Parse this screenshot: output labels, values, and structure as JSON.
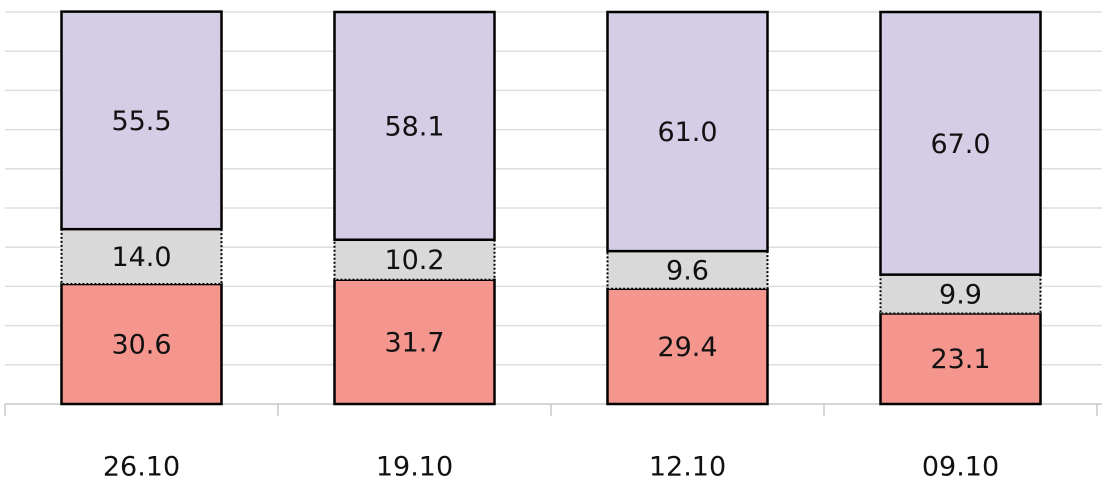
{
  "chart_data": {
    "type": "stacked_bar",
    "categories": [
      "26.10",
      "19.10",
      "12.10",
      "09.10"
    ],
    "series": [
      {
        "color": "#f4968e",
        "line_style": "solid",
        "values": [
          30.6,
          31.7,
          29.4,
          23.1
        ]
      },
      {
        "color": "#d9d9d9",
        "line_style": "dotted",
        "values": [
          14.0,
          10.2,
          9.6,
          9.9
        ]
      },
      {
        "color": "#d5cce6",
        "line_style": "solid",
        "values": [
          55.5,
          58.1,
          61.0,
          67.0
        ]
      }
    ],
    "value_labels": [
      [
        "30.6",
        "31.7",
        "29.4",
        "23.1"
      ],
      [
        "14.0",
        "10.2",
        "9.6",
        "9.9"
      ],
      [
        "55.5",
        "58.1",
        "61.0",
        "67.0"
      ]
    ],
    "ylim": [
      0,
      100
    ],
    "yticks": [
      0,
      10,
      20,
      30,
      40,
      50,
      60,
      70,
      80,
      90,
      100
    ],
    "grid": true
  }
}
